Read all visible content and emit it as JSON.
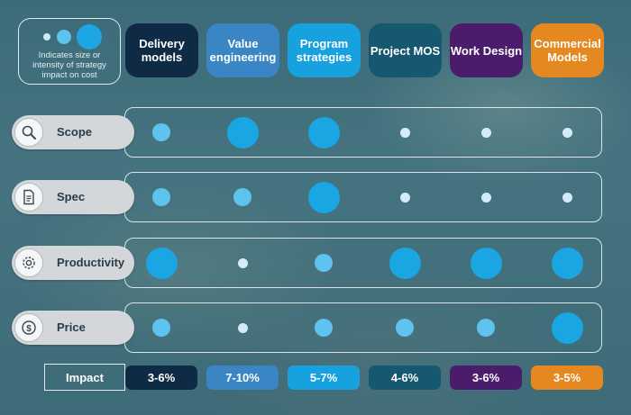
{
  "legend": {
    "text": "Indicates size or intensity of strategy impact on cost"
  },
  "strategies": [
    {
      "label": "Delivery models",
      "color": "#0f2a45",
      "impact": "3-6%"
    },
    {
      "label": "Value engineering",
      "color": "#3a86c4",
      "impact": "7-10%"
    },
    {
      "label": "Program strategies",
      "color": "#17a2df",
      "impact": "5-7%"
    },
    {
      "label": "Project MOS",
      "color": "#15586f",
      "impact": "4-6%"
    },
    {
      "label": "Work Design",
      "color": "#4b1c6b",
      "impact": "3-6%"
    },
    {
      "label": "Commercial Models",
      "color": "#e4881f",
      "impact": "3-5%"
    }
  ],
  "dimensions": [
    {
      "label": "Scope",
      "icon": "magnifier-icon",
      "intensity": [
        2,
        3,
        3,
        1,
        1,
        1
      ]
    },
    {
      "label": "Spec",
      "icon": "document-icon",
      "intensity": [
        2,
        2,
        3,
        1,
        1,
        1
      ]
    },
    {
      "label": "Productivity",
      "icon": "gear-icon",
      "intensity": [
        3,
        1,
        2,
        3,
        3,
        3
      ]
    },
    {
      "label": "Price",
      "icon": "dollar-icon",
      "intensity": [
        2,
        1,
        2,
        2,
        2,
        3
      ]
    }
  ],
  "impact_label": "Impact"
}
